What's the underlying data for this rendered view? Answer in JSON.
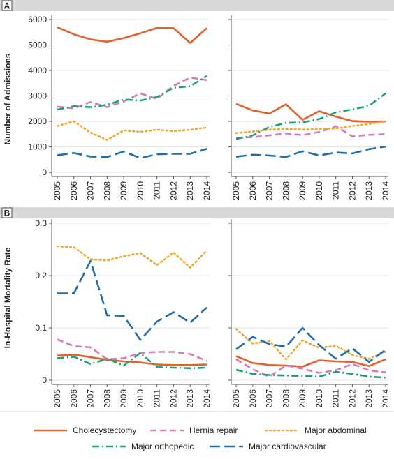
{
  "panel_labels": [
    "A",
    "B"
  ],
  "chart_data": [
    {
      "type": "line",
      "panel": "A",
      "ylabel": "Number of Admissions",
      "ylim": [
        0,
        6000
      ],
      "yticks": [
        0,
        1000,
        2000,
        3000,
        4000,
        5000,
        6000
      ],
      "x": [
        "2005",
        "2006",
        "2007",
        "2008",
        "2009",
        "2010",
        "2011",
        "2012",
        "2013",
        "2014"
      ],
      "subplots": [
        {
          "series": [
            {
              "name": "Cholecystectomy",
              "values": [
                5700,
                5420,
                5220,
                5130,
                5270,
                5460,
                5670,
                5660,
                5080,
                5660
              ]
            },
            {
              "name": "Hernia repair",
              "values": [
                2580,
                2510,
                2760,
                2560,
                2780,
                3100,
                2880,
                3400,
                3720,
                3620
              ]
            },
            {
              "name": "Major abdominal",
              "values": [
                1820,
                2000,
                1560,
                1270,
                1640,
                1590,
                1670,
                1620,
                1670,
                1760
              ]
            },
            {
              "name": "Major orthopedic",
              "values": [
                2460,
                2600,
                2560,
                2650,
                2860,
                2820,
                2960,
                3320,
                3380,
                3780
              ]
            },
            {
              "name": "Major cardiovascular",
              "values": [
                670,
                760,
                620,
                600,
                820,
                560,
                710,
                730,
                730,
                920
              ]
            }
          ]
        },
        {
          "series": [
            {
              "name": "Cholecystectomy",
              "values": [
                2690,
                2430,
                2310,
                2670,
                2060,
                2400,
                2190,
                2010,
                1990,
                2000
              ]
            },
            {
              "name": "Hernia repair",
              "values": [
                1360,
                1380,
                1450,
                1530,
                1460,
                1580,
                1810,
                1410,
                1470,
                1500
              ]
            },
            {
              "name": "Major abdominal",
              "values": [
                1540,
                1600,
                1680,
                1700,
                1680,
                1700,
                1720,
                1820,
                1900,
                1990
              ]
            },
            {
              "name": "Major orthopedic",
              "values": [
                1310,
                1450,
                1780,
                1940,
                1960,
                2090,
                2350,
                2470,
                2610,
                3100
              ]
            },
            {
              "name": "Major cardiovascular",
              "values": [
                610,
                690,
                660,
                600,
                830,
                660,
                780,
                740,
                910,
                1010
              ]
            }
          ]
        }
      ]
    },
    {
      "type": "line",
      "panel": "B",
      "ylabel": "In-Hospital Mortality Rate",
      "ylim": [
        0,
        0.3
      ],
      "yticks": [
        0,
        0.1,
        0.2,
        0.3
      ],
      "x": [
        "2005",
        "2006",
        "2007",
        "2008",
        "2009",
        "2010",
        "2011",
        "2012",
        "2013",
        "2014"
      ],
      "subplots": [
        {
          "series": [
            {
              "name": "Cholecystectomy",
              "values": [
                0.047,
                0.049,
                0.044,
                0.039,
                0.036,
                0.034,
                0.03,
                0.029,
                0.029,
                0.03
              ]
            },
            {
              "name": "Hernia repair",
              "values": [
                0.078,
                0.065,
                0.063,
                0.04,
                0.042,
                0.052,
                0.054,
                0.054,
                0.05,
                0.037
              ]
            },
            {
              "name": "Major abdominal",
              "values": [
                0.256,
                0.254,
                0.231,
                0.229,
                0.237,
                0.243,
                0.22,
                0.244,
                0.215,
                0.248
              ]
            },
            {
              "name": "Major orthopedic",
              "values": [
                0.042,
                0.045,
                0.031,
                0.041,
                0.028,
                0.052,
                0.025,
                0.024,
                0.023,
                0.024
              ]
            },
            {
              "name": "Major cardiovascular",
              "values": [
                0.166,
                0.166,
                0.228,
                0.124,
                0.123,
                0.077,
                0.112,
                0.13,
                0.11,
                0.139
              ]
            }
          ]
        },
        {
          "series": [
            {
              "name": "Cholecystectomy",
              "values": [
                0.046,
                0.033,
                0.029,
                0.028,
                0.026,
                0.038,
                0.036,
                0.035,
                0.027,
                0.04
              ]
            },
            {
              "name": "Hernia repair",
              "values": [
                0.04,
                0.021,
                0.007,
                0.028,
                0.022,
                0.014,
                0.019,
                0.031,
                0.019,
                0.015
              ]
            },
            {
              "name": "Major abdominal",
              "values": [
                0.098,
                0.07,
                0.075,
                0.04,
                0.076,
                0.062,
                0.066,
                0.048,
                0.041,
                0.055
              ]
            },
            {
              "name": "Major orthopedic",
              "values": [
                0.02,
                0.012,
                0.01,
                0.009,
                0.008,
                0.007,
                0.016,
                0.012,
                0.007,
                0.005
              ]
            },
            {
              "name": "Major cardiovascular",
              "values": [
                0.059,
                0.083,
                0.069,
                0.064,
                0.1,
                0.067,
                0.041,
                0.061,
                0.035,
                0.058
              ]
            }
          ]
        }
      ]
    }
  ],
  "styles": [
    {
      "name": "Cholecystectomy",
      "color": "#E2622D",
      "dash": "solid"
    },
    {
      "name": "Hernia repair",
      "color": "#D97AB8",
      "dash": "dash"
    },
    {
      "name": "Major abdominal",
      "color": "#F0A830",
      "dash": "dot"
    },
    {
      "name": "Major orthopedic",
      "color": "#1BA277",
      "dash": "dashdot"
    },
    {
      "name": "Major cardiovascular",
      "color": "#1F6FAE",
      "dash": "longdash"
    }
  ],
  "legend": {
    "items": [
      "Cholecystectomy",
      "Hernia repair",
      "Major abdominal",
      "Major orthopedic",
      "Major cardiovascular"
    ],
    "placement": "bottom"
  }
}
